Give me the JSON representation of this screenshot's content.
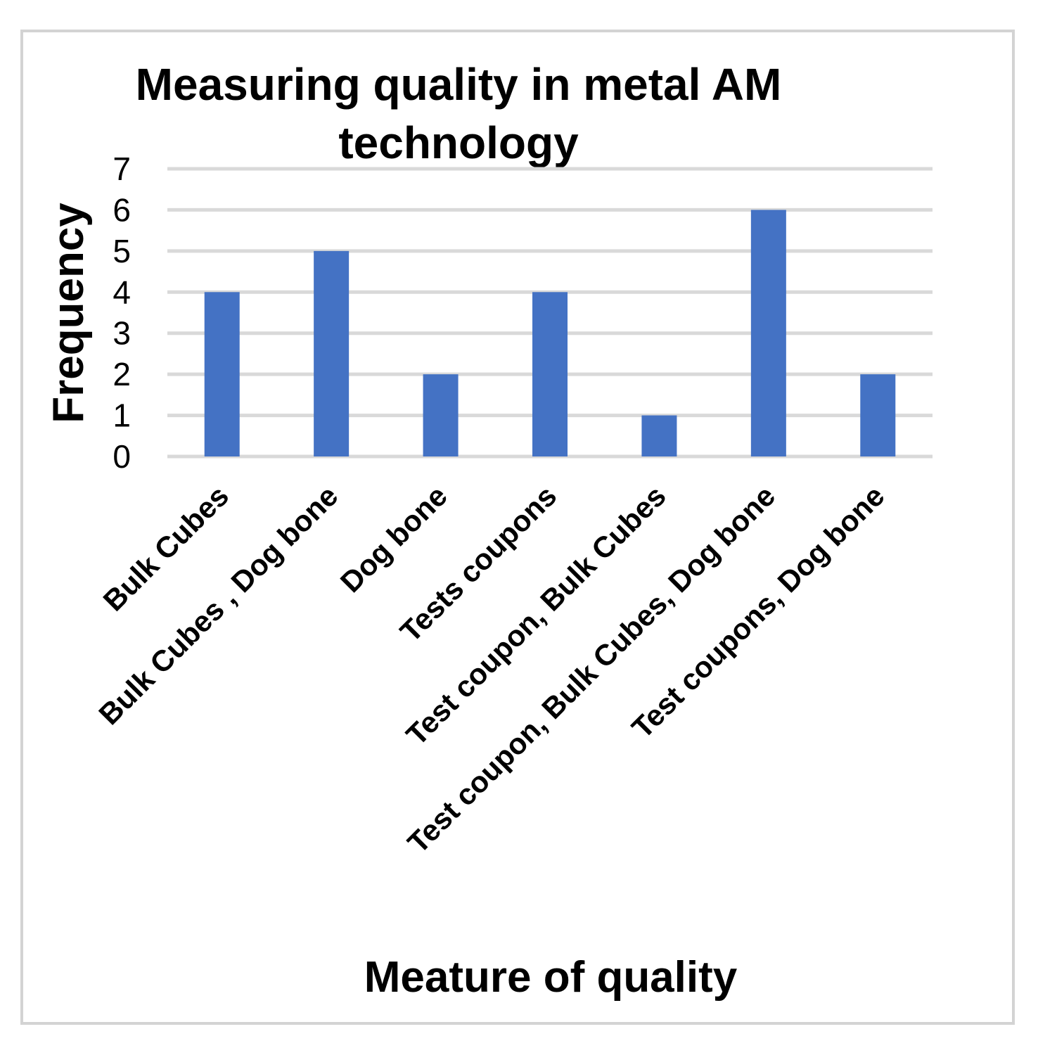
{
  "chart_data": {
    "type": "bar",
    "title": [
      "Measuring quality in metal AM",
      "technology"
    ],
    "xlabel": "Meature of quality",
    "ylabel": "Frequency",
    "categories": [
      "Bulk Cubes",
      "Bulk Cubes , Dog bone",
      "Dog bone",
      "Tests coupons",
      "Test coupon, Bulk Cubes",
      "Test coupon, Bulk Cubes, Dog bone",
      "Test coupons, Dog bone"
    ],
    "values": [
      4,
      5,
      2,
      4,
      1,
      6,
      2
    ],
    "ylim": [
      0,
      7
    ],
    "yticks": [
      "0",
      "1",
      "2",
      "3",
      "4",
      "5",
      "6",
      "7"
    ],
    "grid": true,
    "legend": "none",
    "colors": {
      "bar": "#4472C4",
      "grid": "#d9d9d9",
      "frame": "#d3d3d3"
    }
  }
}
